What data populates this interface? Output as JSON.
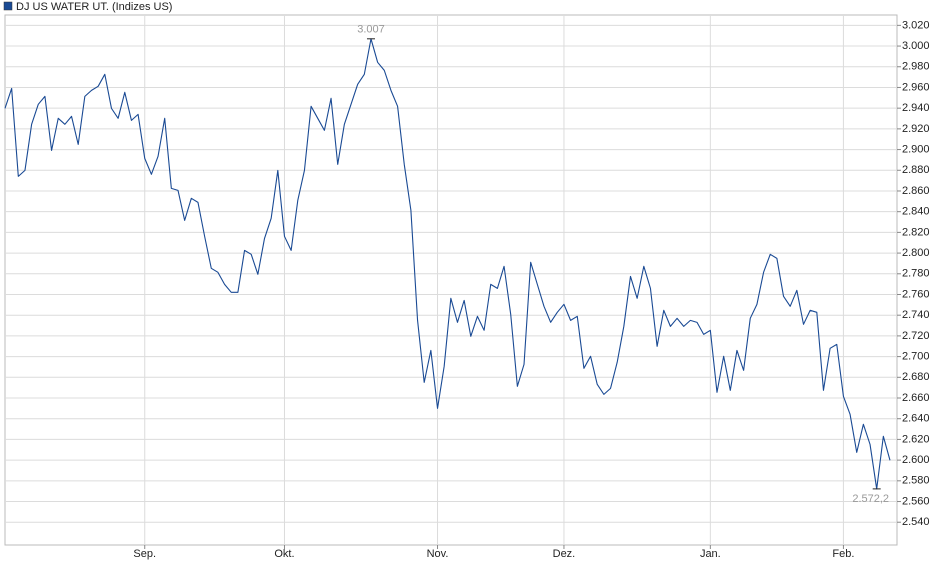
{
  "chart_data": {
    "type": "line",
    "categories": [
      null,
      null,
      null,
      null,
      null,
      null,
      null,
      null,
      null,
      null,
      null,
      null,
      null,
      null,
      null,
      null,
      null,
      null,
      null,
      null,
      null,
      "Sep.",
      null,
      null,
      null,
      null,
      null,
      null,
      null,
      null,
      null,
      null,
      null,
      null,
      null,
      null,
      null,
      null,
      null,
      null,
      null,
      null,
      "Okt.",
      null,
      null,
      null,
      null,
      null,
      null,
      null,
      null,
      null,
      null,
      null,
      null,
      null,
      null,
      null,
      null,
      null,
      null,
      null,
      null,
      null,
      null,
      "Nov.",
      null,
      null,
      null,
      null,
      null,
      null,
      null,
      null,
      null,
      null,
      null,
      null,
      null,
      null,
      null,
      null,
      null,
      null,
      "Dez.",
      null,
      null,
      null,
      null,
      null,
      null,
      null,
      null,
      null,
      null,
      null,
      null,
      null,
      null,
      null,
      null,
      null,
      null,
      null,
      null,
      null,
      "Jan.",
      null,
      null,
      null,
      null,
      null,
      null,
      null,
      null,
      null,
      null,
      null,
      null,
      null,
      null,
      null,
      null,
      null,
      null,
      null,
      "Feb.",
      null,
      null,
      null,
      null,
      null,
      null,
      null
    ],
    "series": [
      {
        "name": "DJ US WATER UT. (Indizes US)",
        "color": "#1a4a94",
        "values": [
          2939.8,
          2959.1,
          2874.1,
          2879.9,
          2924.4,
          2943.7,
          2951.4,
          2899.2,
          2930.2,
          2924.4,
          2932.1,
          2905,
          2951.4,
          2957.2,
          2961.1,
          2972.7,
          2939.8,
          2930.2,
          2955.3,
          2928.2,
          2934,
          2891.5,
          2876.1,
          2893.5,
          2930.2,
          2862.5,
          2860.6,
          2831.6,
          2852.9,
          2849,
          2816.2,
          2785.3,
          2781.4,
          2769.8,
          2762.1,
          2762.1,
          2802.6,
          2798.8,
          2779.5,
          2814.2,
          2833.6,
          2879.9,
          2816.2,
          2802.6,
          2850.9,
          2879.9,
          2941.8,
          2930.2,
          2918.6,
          2949.5,
          2885.7,
          2924.4,
          2943.7,
          2963,
          2972.7,
          3007,
          2984.3,
          2976.5,
          2957.2,
          2941.8,
          2885.7,
          2841.3,
          2735,
          2675.1,
          2706,
          2650,
          2690.6,
          2756.3,
          2733.1,
          2754.3,
          2719.6,
          2738.9,
          2725.4,
          2769.8,
          2765.9,
          2787.2,
          2740.8,
          2671.3,
          2692.5,
          2791.1,
          2769.8,
          2748.6,
          2733.1,
          2742.8,
          2750.5,
          2735,
          2738.9,
          2688.7,
          2700.3,
          2673.2,
          2663.5,
          2669.3,
          2694.5,
          2729.2,
          2777.5,
          2756.3,
          2787.2,
          2765.9,
          2709.9,
          2744.7,
          2729.2,
          2737,
          2729.2,
          2735,
          2733.1,
          2721.5,
          2725.4,
          2665.5,
          2700.3,
          2667.4,
          2706,
          2686.7,
          2737,
          2750.5,
          2781.4,
          2798.8,
          2794.9,
          2758.2,
          2748.6,
          2764,
          2731.2,
          2744.7,
          2742.8,
          2667.4,
          2708,
          2711.8,
          2661.6,
          2644.2,
          2607.5,
          2634.6,
          2615.2,
          2572.2,
          2623,
          2599.8
        ],
        "value_labels": [
          null,
          null,
          null,
          null,
          null,
          null,
          null,
          null,
          null,
          null,
          null,
          null,
          null,
          null,
          null,
          null,
          null,
          null,
          null,
          null,
          null,
          null,
          null,
          null,
          null,
          null,
          null,
          null,
          null,
          null,
          null,
          null,
          null,
          null,
          null,
          null,
          null,
          null,
          null,
          null,
          null,
          null,
          null,
          null,
          null,
          null,
          null,
          null,
          null,
          null,
          null,
          null,
          null,
          null,
          null,
          "3.007",
          null,
          null,
          null,
          null,
          null,
          null,
          null,
          null,
          null,
          null,
          null,
          null,
          null,
          null,
          null,
          null,
          null,
          null,
          null,
          null,
          null,
          null,
          null,
          null,
          null,
          null,
          null,
          null,
          null,
          null,
          null,
          null,
          null,
          null,
          null,
          null,
          null,
          null,
          null,
          null,
          null,
          null,
          null,
          null,
          null,
          null,
          null,
          null,
          null,
          null,
          null,
          null,
          null,
          null,
          null,
          null,
          null,
          null,
          null,
          null,
          null,
          null,
          null,
          null,
          null,
          null,
          null,
          null,
          null,
          null,
          null,
          null,
          null,
          null,
          null,
          "2.572,2",
          null,
          null
        ]
      }
    ],
    "ylim": [
      2518,
      3030
    ],
    "yticks": [
      {
        "value": 2540,
        "label": "2.540"
      },
      {
        "value": 2560,
        "label": "2.560"
      },
      {
        "value": 2580,
        "label": "2.580"
      },
      {
        "value": 2600,
        "label": "2.600"
      },
      {
        "value": 2620,
        "label": "2.620"
      },
      {
        "value": 2640,
        "label": "2.640"
      },
      {
        "value": 2660,
        "label": "2.660"
      },
      {
        "value": 2680,
        "label": "2.680"
      },
      {
        "value": 2700,
        "label": "2.700"
      },
      {
        "value": 2720,
        "label": "2.720"
      },
      {
        "value": 2740,
        "label": "2.740"
      },
      {
        "value": 2760,
        "label": "2.760"
      },
      {
        "value": 2780,
        "label": "2.780"
      },
      {
        "value": 2800,
        "label": "2.800"
      },
      {
        "value": 2820,
        "label": "2.820"
      },
      {
        "value": 2840,
        "label": "2.840"
      },
      {
        "value": 2860,
        "label": "2.860"
      },
      {
        "value": 2880,
        "label": "2.880"
      },
      {
        "value": 2900,
        "label": "2.900"
      },
      {
        "value": 2920,
        "label": "2.920"
      },
      {
        "value": 2940,
        "label": "2.940"
      },
      {
        "value": 2960,
        "label": "2.960"
      },
      {
        "value": 2980,
        "label": "2.980"
      },
      {
        "value": 3000,
        "label": "3.000"
      },
      {
        "value": 3020,
        "label": "3.020"
      }
    ],
    "grid": true,
    "legend": "top-left"
  }
}
